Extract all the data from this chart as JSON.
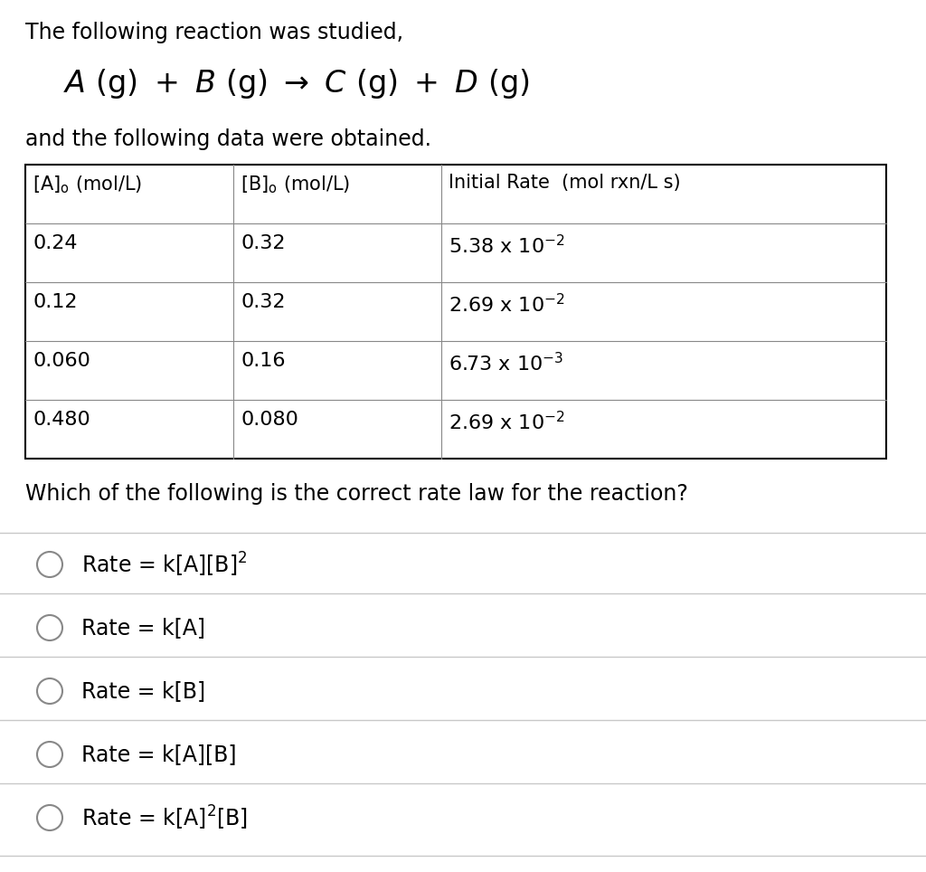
{
  "background_color": "#ffffff",
  "title_text": "The following reaction was studied,",
  "subtitle_text": "and the following data were obtained.",
  "question_text": "Which of the following is the correct rate law for the reaction?",
  "table_data": [
    [
      "0.24",
      "0.32",
      "5.38 x 10⁻²"
    ],
    [
      "0.12",
      "0.32",
      "2.69 x 10⁻²"
    ],
    [
      "0.060",
      "0.16",
      "6.73 x 10⁻³"
    ],
    [
      "0.480",
      "0.080",
      "2.69 x 10⁻²"
    ]
  ],
  "rate_exponents": [
    "-2",
    "-2",
    "-3",
    "-2"
  ],
  "rate_mantissas": [
    "5.38 x 10",
    "2.69 x 10",
    "6.73 x 10",
    "2.69 x 10"
  ],
  "options_text": [
    "Rate = k[A][B]",
    "Rate = k[A]",
    "Rate = k[B]",
    "Rate = k[A][B]",
    "Rate = k[A]"
  ],
  "options_sup": [
    "2",
    "",
    "",
    "",
    "2"
  ],
  "options_suffix": [
    "",
    "",
    "",
    "",
    "[B]"
  ],
  "options_full": [
    [
      "Rate = k[A][B]",
      "2",
      ""
    ],
    [
      "Rate = k[A]",
      "",
      ""
    ],
    [
      "Rate = k[B]",
      "",
      ""
    ],
    [
      "Rate = k[A][B]",
      "",
      ""
    ],
    [
      "Rate = k[A]",
      "2",
      "[B]"
    ]
  ],
  "text_color": "#000000",
  "separator_color": "#c8c8c8",
  "circle_color": "#888888",
  "font_size_title": 17,
  "font_size_reaction": 24,
  "font_size_table_header": 15,
  "font_size_table_data": 16,
  "font_size_question": 17,
  "font_size_option": 17
}
